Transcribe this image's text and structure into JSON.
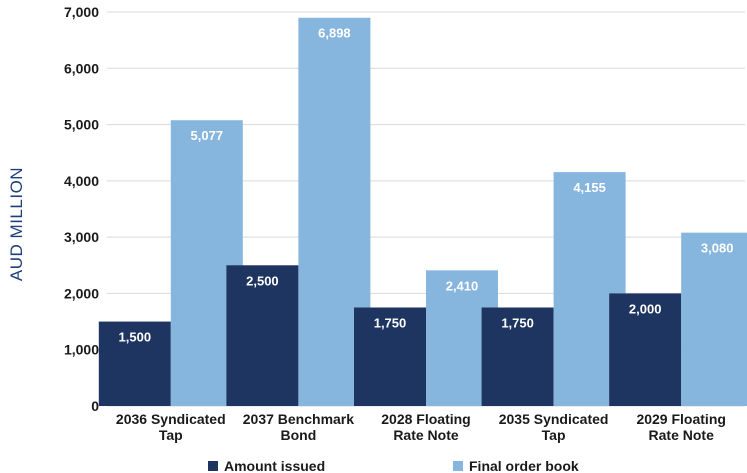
{
  "chart_data": {
    "type": "bar",
    "ylabel": "AUD MILLION",
    "xlabel": "",
    "ylim": [
      0,
      7000
    ],
    "yticks": [
      0,
      1000,
      2000,
      3000,
      4000,
      5000,
      6000,
      7000
    ],
    "ytick_labels": [
      "0",
      "1,000",
      "2,000",
      "3,000",
      "4,000",
      "5,000",
      "6,000",
      "7,000"
    ],
    "grid": true,
    "legend_position": "bottom",
    "categories": [
      [
        "2036 Syndicated",
        "Tap"
      ],
      [
        "2037 Benchmark",
        "Bond"
      ],
      [
        "2028 Floating",
        "Rate Note"
      ],
      [
        "2035 Syndicated",
        "Tap"
      ],
      [
        "2029 Floating",
        "Rate Note"
      ]
    ],
    "series": [
      {
        "name": "Amount issued",
        "color": "#1e3461",
        "values": [
          1500,
          2500,
          1750,
          1750,
          2000
        ],
        "labels": [
          "1,500",
          "2,500",
          "1,750",
          "1,750",
          "2,000"
        ]
      },
      {
        "name": "Final order book",
        "color": "#86b5de",
        "values": [
          5077,
          6898,
          2410,
          4155,
          3080
        ],
        "labels": [
          "5,077",
          "6,898",
          "2,410",
          "4,155",
          "3,080"
        ]
      }
    ]
  }
}
